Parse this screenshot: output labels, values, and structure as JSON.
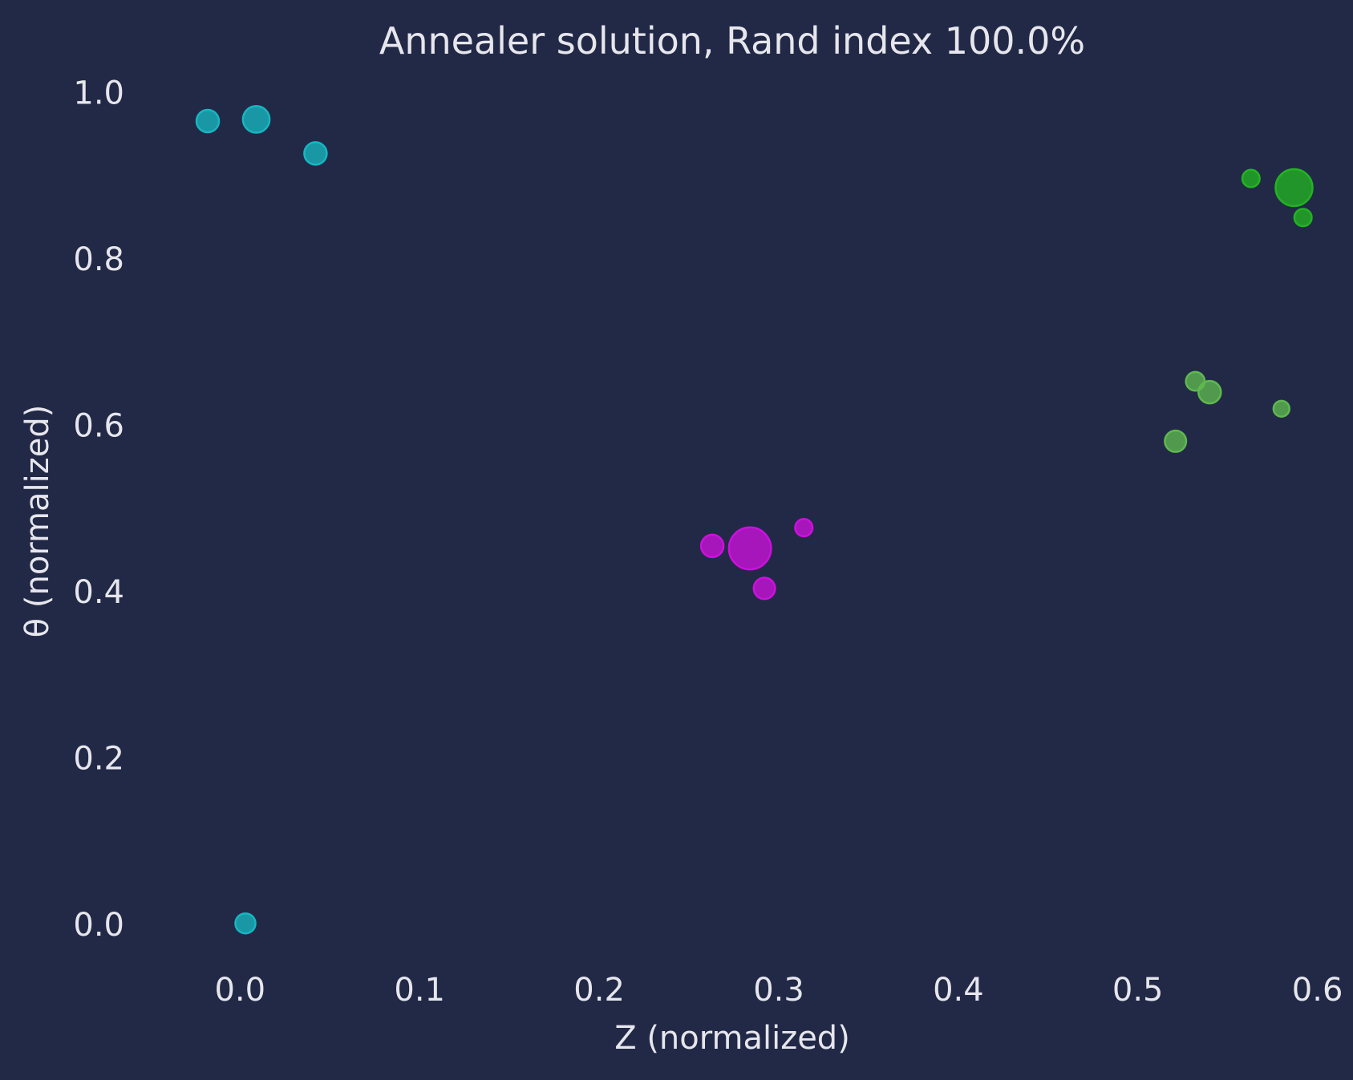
{
  "chart_data": {
    "type": "scatter",
    "title": "Annealer solution, Rand index 100.0%",
    "xlabel": "Z (normalized)",
    "ylabel": "θ (normalized)",
    "xlim": [
      -0.06,
      0.61
    ],
    "ylim": [
      -0.06,
      1.02
    ],
    "xticks": [
      "0.0",
      "0.1",
      "0.2",
      "0.3",
      "0.4",
      "0.5",
      "0.6"
    ],
    "yticks": [
      "0.0",
      "0.2",
      "0.4",
      "0.6",
      "0.8",
      "1.0"
    ],
    "grid": false,
    "legend": "none",
    "bubble_size": "relative",
    "series": [
      {
        "color": "#17b6c0",
        "points": [
          {
            "x": -0.018,
            "y": 0.966,
            "size": 1.0
          },
          {
            "x": 0.009,
            "y": 0.968,
            "size": 1.4
          },
          {
            "x": 0.042,
            "y": 0.927,
            "size": 1.0
          },
          {
            "x": 0.003,
            "y": 0.001,
            "size": 0.8
          }
        ]
      },
      {
        "color": "#cc11dd",
        "points": [
          {
            "x": 0.284,
            "y": 0.452,
            "size": 3.5
          },
          {
            "x": 0.263,
            "y": 0.455,
            "size": 1.0
          },
          {
            "x": 0.314,
            "y": 0.477,
            "size": 0.6
          },
          {
            "x": 0.292,
            "y": 0.404,
            "size": 0.9
          }
        ]
      },
      {
        "color": "#22b322",
        "points": [
          {
            "x": 0.587,
            "y": 0.886,
            "size": 2.7
          },
          {
            "x": 0.563,
            "y": 0.897,
            "size": 0.6
          },
          {
            "x": 0.592,
            "y": 0.85,
            "size": 0.6
          }
        ]
      },
      {
        "color": "#5fb84f",
        "points": [
          {
            "x": 0.532,
            "y": 0.653,
            "size": 0.7
          },
          {
            "x": 0.54,
            "y": 0.64,
            "size": 1.0
          },
          {
            "x": 0.58,
            "y": 0.62,
            "size": 0.5
          },
          {
            "x": 0.521,
            "y": 0.581,
            "size": 0.9
          }
        ]
      }
    ]
  }
}
